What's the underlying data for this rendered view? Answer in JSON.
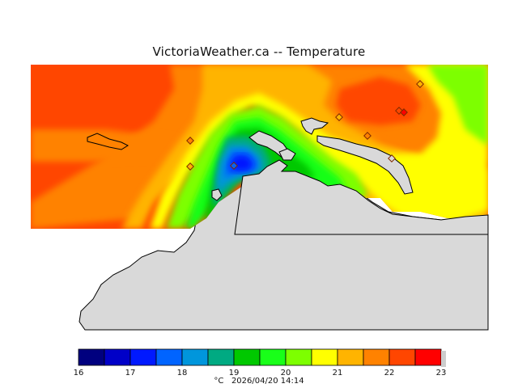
{
  "title": "VictoriaWeather.ca -- Temperature",
  "legend": {
    "unit": "°C",
    "timestamp": "2026/04/20 14:14",
    "bins": [
      {
        "from": 16.0,
        "to": 16.5,
        "color": "#00007f"
      },
      {
        "from": 16.5,
        "to": 17.0,
        "color": "#0000c8"
      },
      {
        "from": 17.0,
        "to": 17.5,
        "color": "#0019ff"
      },
      {
        "from": 17.5,
        "to": 18.0,
        "color": "#0064ff"
      },
      {
        "from": 18.0,
        "to": 18.5,
        "color": "#0096dc"
      },
      {
        "from": 18.5,
        "to": 19.0,
        "color": "#00aa82"
      },
      {
        "from": 19.0,
        "to": 19.5,
        "color": "#00c800"
      },
      {
        "from": 19.5,
        "to": 20.0,
        "color": "#19ff19"
      },
      {
        "from": 20.0,
        "to": 20.5,
        "color": "#7dff00"
      },
      {
        "from": 20.5,
        "to": 21.0,
        "color": "#ffff00"
      },
      {
        "from": 21.0,
        "to": 21.5,
        "color": "#ffb400"
      },
      {
        "from": 21.5,
        "to": 22.0,
        "color": "#ff8200"
      },
      {
        "from": 22.0,
        "to": 22.5,
        "color": "#ff4600"
      },
      {
        "from": 22.5,
        "to": 23.0,
        "color": "#ff0000"
      }
    ],
    "ticks": [
      "16",
      "17",
      "18",
      "19",
      "20",
      "21",
      "22",
      "23"
    ]
  },
  "colors": {
    "land": "#d9d9d9",
    "coast": "#000000",
    "station_marker": "#ff4600"
  }
}
